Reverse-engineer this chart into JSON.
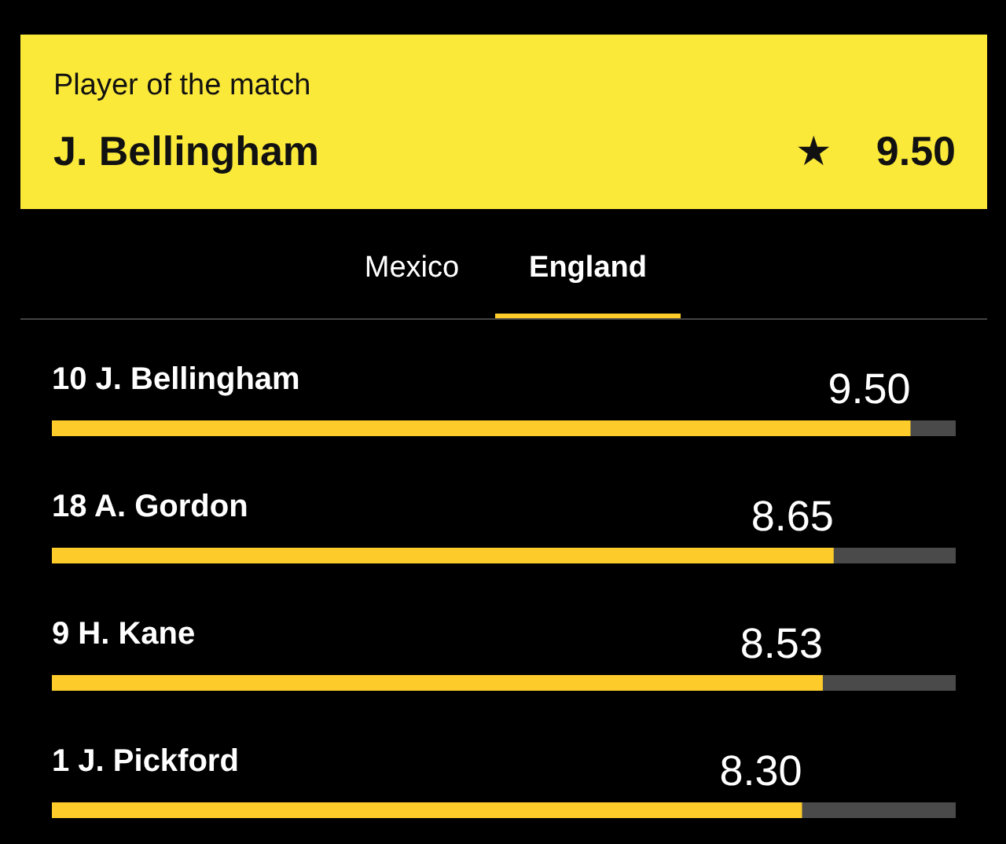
{
  "chart_data": {
    "type": "bar",
    "orientation": "horizontal",
    "categories": [
      "10 J. Bellingham",
      "18 A. Gordon",
      "9 H. Kane",
      "1 J. Pickford"
    ],
    "series": [
      {
        "color": "#fdcb2a",
        "values": [
          9.5,
          8.65,
          8.53,
          8.3
        ],
        "value_labels": [
          "9.50",
          "8.65",
          "8.53",
          "8.30"
        ]
      }
    ],
    "xlim": [
      0,
      10
    ],
    "grid": false,
    "legend": false,
    "annotations": [
      "Player of the match",
      "J. Bellingham",
      "★",
      "9.50",
      "Mexico",
      "England"
    ]
  }
}
